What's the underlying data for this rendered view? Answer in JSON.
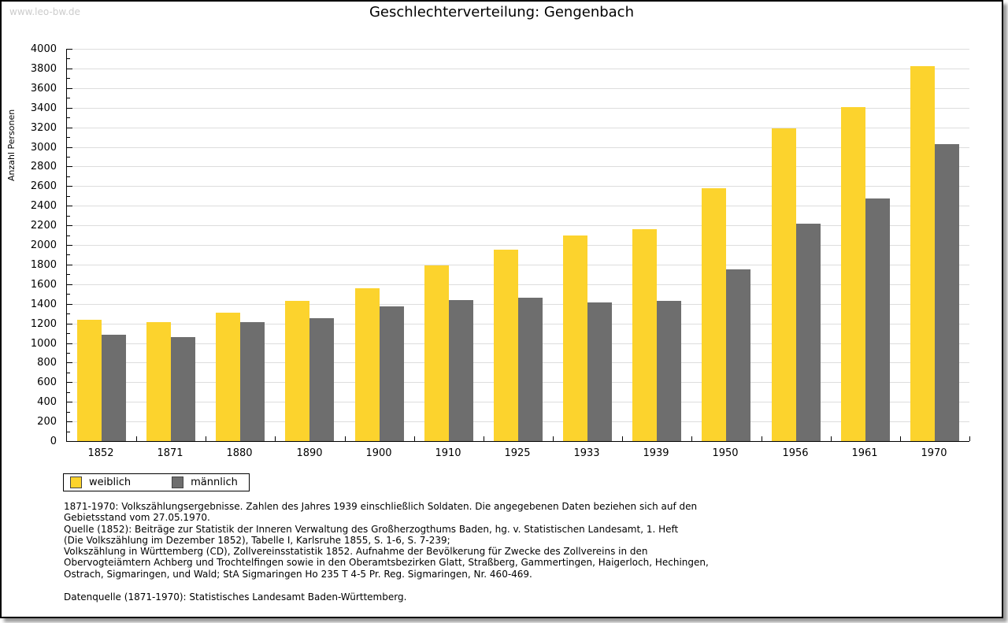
{
  "watermark": "www.leo-bw.de",
  "title": "Geschlechterverteilung: Gengenbach",
  "chart_data": {
    "type": "bar",
    "title": "Geschlechterverteilung: Gengenbach",
    "xlabel": "",
    "ylabel": "Anzahl Personen",
    "ylim": [
      0,
      4000
    ],
    "ytick_step": 200,
    "yminor_step": 100,
    "grid": true,
    "legend_position": "below-left",
    "categories": [
      "1852",
      "1871",
      "1880",
      "1890",
      "1900",
      "1910",
      "1925",
      "1933",
      "1939",
      "1950",
      "1956",
      "1961",
      "1970"
    ],
    "series": [
      {
        "name": "weiblich",
        "color": "#FCD32D",
        "values": [
          1235,
          1215,
          1310,
          1430,
          1560,
          1795,
          1950,
          2100,
          2160,
          2580,
          3190,
          3405,
          3820
        ]
      },
      {
        "name": "männlich",
        "color": "#6E6E6E",
        "values": [
          1085,
          1060,
          1215,
          1255,
          1370,
          1440,
          1465,
          1410,
          1430,
          1750,
          2220,
          2470,
          3030
        ]
      }
    ]
  },
  "legend": {
    "items": [
      {
        "label": "weiblich",
        "color": "#FCD32D"
      },
      {
        "label": "männlich",
        "color": "#6E6E6E"
      }
    ]
  },
  "footnotes": {
    "lines": [
      "1871-1970: Volkszählungsergebnisse. Zahlen des Jahres 1939 einschließlich Soldaten. Die angegebenen Daten beziehen sich auf den",
      "Gebietsstand vom 27.05.1970.",
      "Quelle (1852): Beiträge zur Statistik der Inneren Verwaltung des Großherzogthums Baden, hg. v. Statistischen Landesamt, 1. Heft",
      "(Die Volkszählung im Dezember 1852), Tabelle I, Karlsruhe 1855, S. 1-6, S. 7-239;",
      "Volkszählung in Württemberg (CD), Zollvereinsstatistik 1852. Aufnahme der Bevölkerung für Zwecke des Zollvereins in den",
      "Obervogteiämtern Achberg und Trochtelfingen sowie in den Oberamtsbezirken Glatt, Straßberg, Gammertingen, Haigerloch, Hechingen,",
      "Ostrach, Sigmaringen, und Wald; StA Sigmaringen Ho 235 T 4-5 Pr. Reg. Sigmaringen, Nr. 460-469."
    ],
    "datasource": "Datenquelle (1871-1970): Statistisches Landesamt Baden-Württemberg."
  },
  "colors": {
    "female_bar": "#FCD32D",
    "male_bar": "#6E6E6E",
    "gridline": "#dddddd",
    "watermark": "#cccccc",
    "axis": "#000000",
    "background": "#ffffff"
  }
}
